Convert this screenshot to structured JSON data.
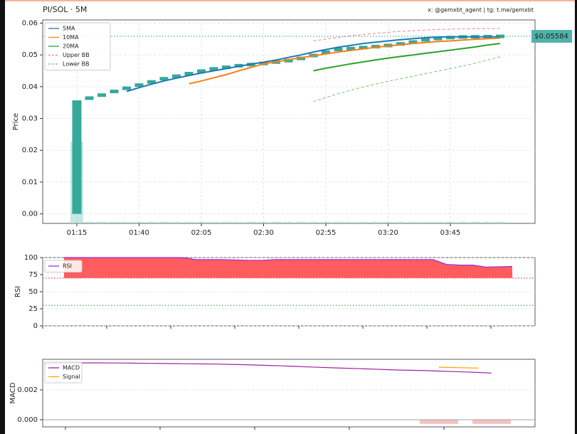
{
  "chart_data": [
    {
      "type": "candlestick",
      "title": "PI/SOL · 5M",
      "watermark": "x: @gemxbt_agent | tg: t.me/gemxbt",
      "ylabel": "Price",
      "categories": [
        "01:15",
        null,
        null,
        null,
        null,
        "01:40",
        null,
        null,
        null,
        null,
        "02:05",
        null,
        null,
        null,
        null,
        "02:30",
        null,
        null,
        null,
        null,
        "02:55",
        null,
        null,
        null,
        null,
        "03:20",
        null,
        null,
        null,
        null,
        "03:45",
        null,
        null,
        null,
        null
      ],
      "open": [
        0,
        0.036,
        0.0369,
        0.038,
        0.0391,
        0.0401,
        0.041,
        0.0421,
        0.043,
        0.0437,
        0.0446,
        0.0453,
        0.0459,
        0.0464,
        0.0468,
        0.0471,
        0.0476,
        0.048,
        0.0485,
        0.0494,
        0.0503,
        0.0515,
        0.0519,
        0.0522,
        0.0525,
        0.0528,
        0.0532,
        0.0537,
        0.0545,
        0.055,
        0.0553,
        0.0556,
        0.0557,
        0.0557,
        0.0558
      ],
      "close": [
        0.0357,
        0.0368,
        0.0378,
        0.039,
        0.0399,
        0.0409,
        0.042,
        0.0429,
        0.0436,
        0.0445,
        0.0452,
        0.0459,
        0.0463,
        0.0468,
        0.0471,
        0.0475,
        0.0479,
        0.0484,
        0.0493,
        0.0502,
        0.0514,
        0.0519,
        0.0521,
        0.0524,
        0.0527,
        0.0531,
        0.0537,
        0.0544,
        0.055,
        0.0553,
        0.0556,
        0.0557,
        0.0557,
        0.0558,
        0.05584
      ],
      "candle_color": "#35a99b",
      "volume": {
        "color": "#9fd9d1",
        "values": [
          0.0257,
          0.0005,
          0.0005,
          0.0005,
          0.0005,
          0.0005,
          0.0005,
          0.0005,
          0.0005,
          0.0005,
          0.0005,
          0.0005,
          0.0005,
          0.0005,
          0.0005,
          0.0005,
          0.0005,
          0.0005,
          0.0005,
          0.0005,
          0.0005,
          0.0005,
          0.0005,
          0.0005,
          0.0005,
          0.0005,
          0.0005,
          0.0005,
          0.0005,
          0.0005,
          0.0005,
          0.0005,
          0.0005,
          0.0005,
          0.0005
        ]
      },
      "series": [
        {
          "name": "5MA",
          "color": "#1f77b4",
          "dashed": false,
          "values": [
            null,
            null,
            null,
            null,
            0.0385,
            0.0397,
            0.0408,
            0.0418,
            0.0427,
            0.0435,
            0.0443,
            0.045,
            0.0457,
            0.0464,
            0.0471,
            0.0477,
            0.0484,
            0.0492,
            0.05,
            0.0509,
            0.0517,
            0.0524,
            0.053,
            0.0536,
            0.054,
            0.0544,
            0.0548,
            0.0551,
            0.0554,
            0.0556,
            0.0557,
            0.0557,
            0.0557,
            0.0557,
            0.0557
          ]
        },
        {
          "name": "10MA",
          "color": "#ff7f0e",
          "dashed": false,
          "values": [
            null,
            null,
            null,
            null,
            null,
            null,
            null,
            null,
            null,
            0.0409,
            0.0418,
            0.0428,
            0.0438,
            0.045,
            0.0461,
            0.0472,
            0.0478,
            0.0485,
            0.0491,
            0.0497,
            0.0503,
            0.0509,
            0.0514,
            0.0519,
            0.0524,
            0.0528,
            0.0532,
            0.0536,
            0.0539,
            0.0542,
            0.0544,
            0.0547,
            0.0549,
            0.0551,
            0.0553
          ]
        },
        {
          "name": "20MA",
          "color": "#2ca02c",
          "dashed": false,
          "values": [
            null,
            null,
            null,
            null,
            null,
            null,
            null,
            null,
            null,
            null,
            null,
            null,
            null,
            null,
            null,
            null,
            null,
            null,
            null,
            0.045,
            0.0458,
            0.0465,
            0.0472,
            0.0478,
            0.0484,
            0.049,
            0.0495,
            0.05,
            0.0505,
            0.051,
            0.0515,
            0.052,
            0.0525,
            0.0531,
            0.0536
          ]
        },
        {
          "name": "Upper BB",
          "color": "#f08080",
          "dashed": true,
          "values": [
            null,
            null,
            null,
            null,
            null,
            null,
            null,
            null,
            null,
            null,
            null,
            null,
            null,
            null,
            null,
            null,
            null,
            null,
            null,
            0.0544,
            0.055,
            0.0555,
            0.056,
            0.0564,
            0.0568,
            0.0571,
            0.0574,
            0.0576,
            0.0578,
            0.058,
            0.0581,
            0.0582,
            0.0583,
            0.0583,
            0.0583
          ]
        },
        {
          "name": "Lower BB",
          "color": "#6cc46c",
          "dashed": true,
          "values": [
            null,
            null,
            null,
            null,
            null,
            null,
            null,
            null,
            null,
            null,
            null,
            null,
            null,
            null,
            null,
            null,
            null,
            null,
            null,
            0.0353,
            0.0366,
            0.0378,
            0.0389,
            0.0399,
            0.0408,
            0.0417,
            0.0425,
            0.0433,
            0.0441,
            0.0449,
            0.0457,
            0.0465,
            0.0474,
            0.0484,
            0.0494
          ]
        }
      ],
      "last_price": {
        "value": 0.05584,
        "label": "$0.05584"
      },
      "ylim": [
        -0.003,
        0.061
      ],
      "yticks": [
        {
          "value": 0,
          "label": "0.00"
        },
        0.01,
        0.02,
        0.03,
        0.04,
        0.05,
        0.06
      ],
      "grid": true,
      "legend": "upper-left"
    },
    {
      "type": "line",
      "ylabel": "RSI",
      "categories": [
        null,
        null,
        null,
        null,
        null,
        null,
        null,
        null,
        null,
        null,
        null,
        null,
        null,
        null,
        null,
        null,
        null,
        null,
        null,
        null,
        null,
        null,
        null,
        null,
        null,
        null,
        null,
        null,
        null,
        null,
        null,
        null,
        null,
        null,
        null
      ],
      "series": [
        {
          "name": "RSI",
          "color": "#9b30d9",
          "fill_color": "#ff5c60",
          "fill_from": 70,
          "values": [
            100,
            100,
            100,
            100,
            100,
            100,
            100,
            100,
            100,
            100,
            97,
            97,
            97,
            96.5,
            96,
            96,
            97,
            97,
            97,
            97,
            97,
            97,
            97,
            97,
            97,
            97,
            97,
            97,
            97,
            90,
            89,
            89,
            86,
            86.5,
            87
          ]
        }
      ],
      "hlines": [
        {
          "value": 70,
          "color": "#e53935"
        },
        {
          "value": 30,
          "color": "#43a047"
        }
      ],
      "ylim": [
        0,
        100
      ],
      "yticks": [
        0,
        25,
        50,
        75,
        100
      ],
      "grid": true,
      "legend": "upper-left"
    },
    {
      "type": "line",
      "ylabel": "MACD",
      "categories": [
        null,
        null,
        null,
        null,
        null,
        null,
        null,
        null,
        null,
        null,
        null,
        null,
        null,
        null,
        null,
        null,
        null,
        null,
        null,
        null,
        null,
        null,
        null,
        null,
        null,
        null,
        null,
        null,
        null,
        null,
        null,
        null,
        null,
        null,
        null
      ],
      "series": [
        {
          "name": "MACD",
          "color": "#a020a0",
          "values": [
            0.00376,
            0.00378,
            0.0038,
            0.00381,
            0.00381,
            0.0038,
            0.0038,
            0.00379,
            0.00378,
            0.00377,
            0.00376,
            0.00375,
            0.00374,
            0.00373,
            0.00371,
            0.00369,
            0.00367,
            0.00364,
            0.00361,
            0.00358,
            0.00354,
            0.00351,
            0.00348,
            0.00345,
            0.00342,
            0.00339,
            0.00336,
            0.00333,
            0.00331,
            0.00329,
            0.00326,
            0.00323,
            0.0032,
            0.00317,
            0.00313
          ]
        },
        {
          "name": "Signal",
          "color": "#ffa500",
          "values": [
            null,
            null,
            null,
            null,
            null,
            null,
            null,
            null,
            null,
            null,
            null,
            null,
            null,
            null,
            null,
            null,
            null,
            null,
            null,
            null,
            null,
            null,
            null,
            null,
            null,
            null,
            null,
            null,
            null,
            null,
            0.00352,
            0.0035,
            0.00348,
            0.00346,
            null
          ]
        }
      ],
      "histogram": {
        "color": "#f4c2c2",
        "values": [
          null,
          null,
          null,
          null,
          null,
          null,
          null,
          null,
          null,
          null,
          null,
          null,
          null,
          null,
          null,
          null,
          null,
          null,
          null,
          null,
          null,
          null,
          null,
          null,
          null,
          null,
          null,
          null,
          null,
          null,
          -0.00028,
          null,
          null,
          null,
          -0.00028
        ]
      },
      "zero_line": 0,
      "ylim": [
        -0.00048,
        0.00405
      ],
      "yticks": [
        {
          "value": 0,
          "label": "0.000"
        },
        {
          "value": 0.002,
          "label": "0.002"
        }
      ],
      "grid": true,
      "legend": "upper-left"
    }
  ]
}
